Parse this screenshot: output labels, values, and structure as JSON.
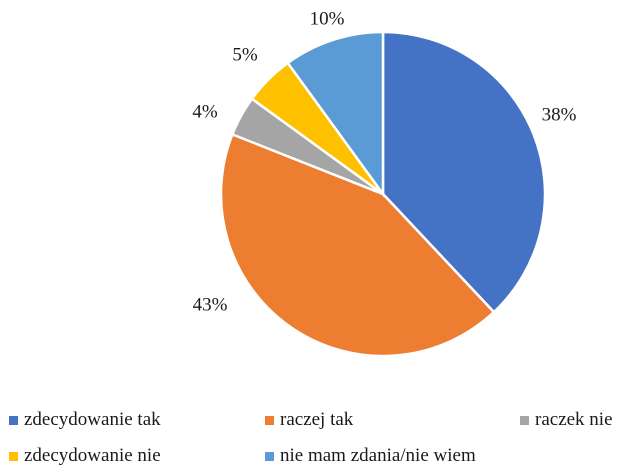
{
  "chart_data": {
    "type": "pie",
    "slices": [
      {
        "label": "zdecydowanie tak",
        "value": 38,
        "display": "38%",
        "color": "#4472C4"
      },
      {
        "label": "raczej tak",
        "value": 43,
        "display": "43%",
        "color": "#ED7D31"
      },
      {
        "label": "raczek nie",
        "value": 4,
        "display": "4%",
        "color": "#A5A5A5"
      },
      {
        "label": "zdecydowanie nie",
        "value": 5,
        "display": "5%",
        "color": "#FFC000"
      },
      {
        "label": "nie mam zdania/nie wiem",
        "value": 10,
        "display": "10%",
        "color": "#5B9BD5"
      }
    ],
    "legend_position": "bottom",
    "start": "top, clockwise"
  }
}
